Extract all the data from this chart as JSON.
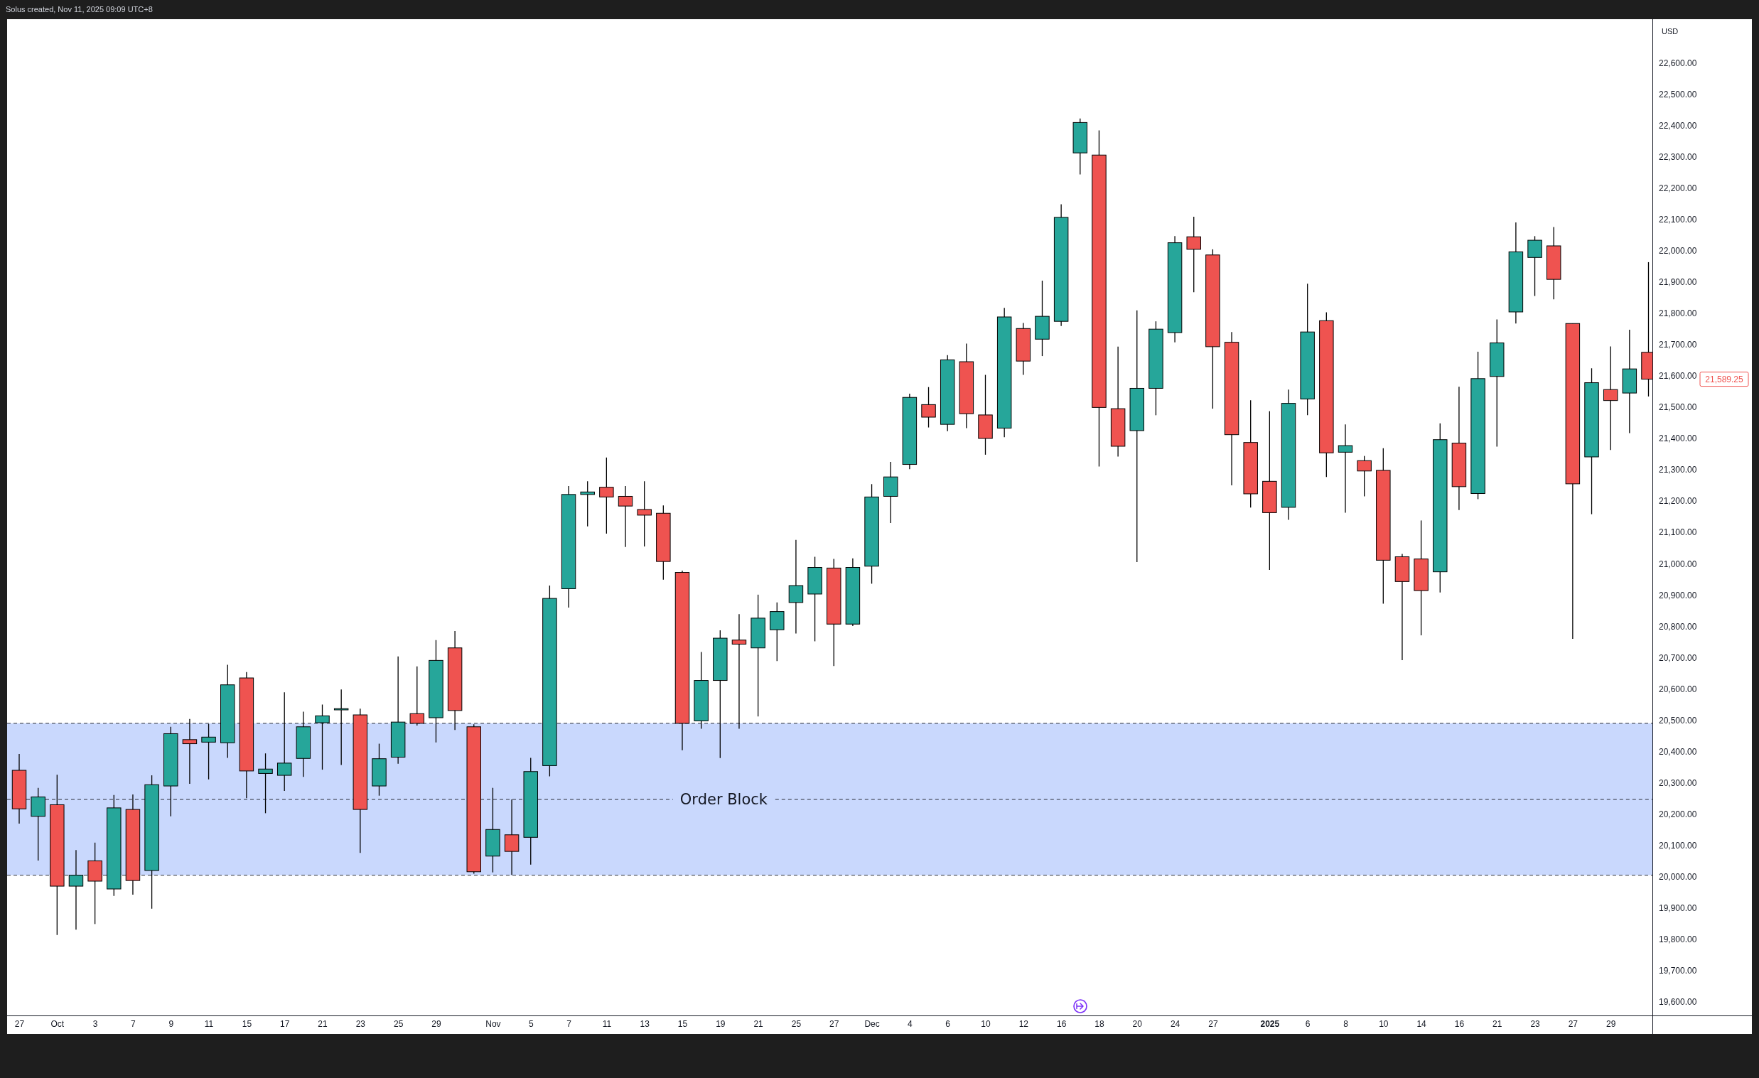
{
  "chart_data": {
    "type": "candlestick",
    "title": "Solus created, Nov 11, 2025 09:09 UTC+8",
    "ylabel": "USD",
    "categories": [
      "27",
      null,
      "Oct",
      null,
      "3",
      null,
      "7",
      null,
      "9",
      null,
      "11",
      null,
      "15",
      null,
      "17",
      null,
      "21",
      null,
      "23",
      null,
      "25",
      null,
      "29",
      null,
      null,
      "Nov",
      null,
      "5",
      null,
      "7",
      null,
      "11",
      null,
      "13",
      null,
      "15",
      null,
      "19",
      null,
      "21",
      null,
      "25",
      null,
      "27",
      null,
      "Dec",
      null,
      "4",
      null,
      "6",
      null,
      "10",
      null,
      "12",
      null,
      "16",
      null,
      "18",
      null,
      "20",
      null,
      "24",
      null,
      "27",
      null,
      null,
      "2025",
      null,
      "6",
      null,
      "8",
      null,
      "10",
      null,
      "14",
      null,
      "16",
      null,
      "21",
      null,
      "23",
      null,
      "27",
      null,
      "29",
      null,
      null
    ],
    "ohlc": [
      [
        20340,
        20392,
        20170,
        20217
      ],
      [
        20193,
        20284,
        20052,
        20255
      ],
      [
        20230,
        20326,
        19814,
        19970
      ],
      [
        19970,
        20085,
        19831,
        20005
      ],
      [
        20051,
        20109,
        19849,
        19986
      ],
      [
        19961,
        20261,
        19939,
        20220
      ],
      [
        20215,
        20263,
        19943,
        19988
      ],
      [
        20020,
        20324,
        19898,
        20294
      ],
      [
        20290,
        20479,
        20193,
        20457
      ],
      [
        20438,
        20504,
        20297,
        20425
      ],
      [
        20430,
        20488,
        20311,
        20446
      ],
      [
        20428,
        20677,
        20380,
        20613
      ],
      [
        20635,
        20654,
        20251,
        20338
      ],
      [
        20330,
        20394,
        20203,
        20344
      ],
      [
        20324,
        20589,
        20274,
        20363
      ],
      [
        20378,
        20527,
        20319,
        20479
      ],
      [
        20492,
        20550,
        20342,
        20514
      ],
      [
        20533,
        20598,
        20357,
        20537
      ],
      [
        20517,
        20537,
        20076,
        20215
      ],
      [
        20290,
        20425,
        20259,
        20377
      ],
      [
        20382,
        20704,
        20361,
        20494
      ],
      [
        20521,
        20672,
        20483,
        20490
      ],
      [
        20508,
        20756,
        20429,
        20691
      ],
      [
        20731,
        20785,
        20469,
        20531
      ],
      [
        20479,
        20487,
        20010,
        20016
      ],
      [
        20066,
        20284,
        20014,
        20151
      ],
      [
        20134,
        20247,
        20006,
        20081
      ],
      [
        20126,
        20380,
        20039,
        20336
      ],
      [
        20355,
        20930,
        20321,
        20889
      ],
      [
        20920,
        21248,
        20860,
        21221
      ],
      [
        21221,
        21263,
        21119,
        21229
      ],
      [
        21244,
        21339,
        21096,
        21213
      ],
      [
        21215,
        21248,
        21053,
        21184
      ],
      [
        21173,
        21263,
        21055,
        21155
      ],
      [
        21161,
        21186,
        20949,
        21007
      ],
      [
        20972,
        20978,
        20404,
        20490
      ],
      [
        20498,
        20718,
        20473,
        20627
      ],
      [
        20627,
        20787,
        20379,
        20762
      ],
      [
        20756,
        20839,
        20473,
        20743
      ],
      [
        20731,
        20901,
        20512,
        20826
      ],
      [
        20789,
        20876,
        20689,
        20847
      ],
      [
        20876,
        21076,
        20777,
        20930
      ],
      [
        20903,
        21022,
        20752,
        20988
      ],
      [
        20986,
        21015,
        20673,
        20807
      ],
      [
        20807,
        21017,
        20801,
        20988
      ],
      [
        20992,
        21254,
        20936,
        21213
      ],
      [
        21215,
        21325,
        21130,
        21277
      ],
      [
        21317,
        21543,
        21302,
        21531
      ],
      [
        21508,
        21564,
        21435,
        21468
      ],
      [
        21445,
        21666,
        21423,
        21651
      ],
      [
        21645,
        21703,
        21433,
        21479
      ],
      [
        21475,
        21603,
        21348,
        21400
      ],
      [
        21433,
        21817,
        21404,
        21788
      ],
      [
        21751,
        21769,
        21603,
        21647
      ],
      [
        21717,
        21904,
        21663,
        21790
      ],
      [
        21774,
        22148,
        21759,
        22106
      ],
      [
        22312,
        22422,
        22243,
        22409
      ],
      [
        22305,
        22384,
        21310,
        21499
      ],
      [
        21495,
        21693,
        21342,
        21375
      ],
      [
        21425,
        21809,
        21005,
        21560
      ],
      [
        21560,
        21774,
        21474,
        21749
      ],
      [
        21738,
        22046,
        21707,
        22025
      ],
      [
        22044,
        22108,
        21867,
        22004
      ],
      [
        21986,
        22004,
        21495,
        21693
      ],
      [
        21707,
        21740,
        21250,
        21412
      ],
      [
        21387,
        21522,
        21179,
        21223
      ],
      [
        21263,
        21487,
        20980,
        21163
      ],
      [
        21180,
        21556,
        21140,
        21512
      ],
      [
        21526,
        21894,
        21474,
        21740
      ],
      [
        21776,
        21803,
        21277,
        21354
      ],
      [
        21356,
        21445,
        21163,
        21377
      ],
      [
        21329,
        21344,
        21215,
        21296
      ],
      [
        21298,
        21369,
        20872,
        21011
      ],
      [
        21022,
        21031,
        20692,
        20943
      ],
      [
        21015,
        21138,
        20771,
        20914
      ],
      [
        20974,
        21448,
        20908,
        21396
      ],
      [
        21385,
        21565,
        21171,
        21246
      ],
      [
        21224,
        21677,
        21206,
        21591
      ],
      [
        21598,
        21780,
        21374,
        21705
      ],
      [
        21804,
        22090,
        21767,
        21996
      ],
      [
        21978,
        22046,
        21855,
        22033
      ],
      [
        22015,
        22075,
        21844,
        21908
      ],
      [
        21767,
        21767,
        20760,
        21255
      ],
      [
        21341,
        21624,
        21158,
        21578
      ],
      [
        21556,
        21694,
        21363,
        21521
      ],
      [
        21545,
        21747,
        21417,
        21622
      ],
      [
        21675,
        21963,
        21534,
        21589.25
      ]
    ],
    "colors": [
      "#ef5350",
      "#26a69a",
      "#ef5350",
      "#26a69a",
      "#ef5350",
      "#26a69a",
      "#ef5350",
      "#26a69a",
      "#26a69a",
      "#ef5350",
      "#26a69a",
      "#26a69a",
      "#ef5350",
      "#26a69a",
      "#26a69a",
      "#26a69a",
      "#26a69a",
      "#26a69a",
      "#ef5350",
      "#26a69a",
      "#26a69a",
      "#ef5350",
      "#26a69a",
      "#ef5350",
      "#ef5350",
      "#26a69a",
      "#ef5350",
      "#26a69a",
      "#26a69a",
      "#26a69a",
      "#26a69a",
      "#ef5350",
      "#ef5350",
      "#ef5350",
      "#ef5350",
      "#ef5350",
      "#26a69a",
      "#26a69a",
      "#ef5350",
      "#26a69a",
      "#26a69a",
      "#26a69a",
      "#26a69a",
      "#ef5350",
      "#26a69a",
      "#26a69a",
      "#26a69a",
      "#26a69a",
      "#ef5350",
      "#26a69a",
      "#ef5350",
      "#ef5350",
      "#26a69a",
      "#ef5350",
      "#26a69a",
      "#26a69a",
      "#26a69a",
      "#ef5350",
      "#ef5350",
      "#26a69a",
      "#26a69a",
      "#26a69a",
      "#ef5350",
      "#ef5350",
      "#ef5350",
      "#ef5350",
      "#ef5350",
      "#26a69a",
      "#26a69a",
      "#ef5350",
      "#26a69a",
      "#ef5350",
      "#ef5350",
      "#ef5350",
      "#ef5350",
      "#26a69a",
      "#ef5350",
      "#26a69a",
      "#26a69a",
      "#26a69a",
      "#26a69a",
      "#ef5350",
      "#ef5350",
      "#26a69a",
      "#ef5350",
      "#26a69a",
      "#ef5350"
    ],
    "ylim": [
      19557,
      22739
    ],
    "yticks": [
      {
        "value": 19600,
        "label": "19,600.00"
      },
      {
        "value": 19700,
        "label": "19,700.00"
      },
      {
        "value": 19800,
        "label": "19,800.00"
      },
      {
        "value": 19900,
        "label": "19,900.00"
      },
      {
        "value": 20000,
        "label": "20,000.00"
      },
      {
        "value": 20100,
        "label": "20,100.00"
      },
      {
        "value": 20200,
        "label": "20,200.00"
      },
      {
        "value": 20300,
        "label": "20,300.00"
      },
      {
        "value": 20400,
        "label": "20,400.00"
      },
      {
        "value": 20500,
        "label": "20,500.00"
      },
      {
        "value": 20600,
        "label": "20,600.00"
      },
      {
        "value": 20700,
        "label": "20,700.00"
      },
      {
        "value": 20800,
        "label": "20,800.00"
      },
      {
        "value": 20900,
        "label": "20,900.00"
      },
      {
        "value": 21000,
        "label": "21,000.00"
      },
      {
        "value": 21100,
        "label": "21,100.00"
      },
      {
        "value": 21200,
        "label": "21,200.00"
      },
      {
        "value": 21300,
        "label": "21,300.00"
      },
      {
        "value": 21400,
        "label": "21,400.00"
      },
      {
        "value": 21500,
        "label": "21,500.00"
      },
      {
        "value": 21600,
        "label": "21,600.00"
      },
      {
        "value": 21700,
        "label": "21,700.00"
      },
      {
        "value": 21800,
        "label": "21,800.00"
      },
      {
        "value": 21900,
        "label": "21,900.00"
      },
      {
        "value": 22000,
        "label": "22,000.00"
      },
      {
        "value": 22100,
        "label": "22,100.00"
      },
      {
        "value": 22200,
        "label": "22,200.00"
      },
      {
        "value": 22300,
        "label": "22,300.00"
      },
      {
        "value": 22400,
        "label": "22,400.00"
      },
      {
        "value": 22500,
        "label": "22,500.00"
      },
      {
        "value": 22600,
        "label": "22,600.00"
      }
    ],
    "bands": [
      {
        "axis": "y",
        "from": 20005,
        "to": 20490,
        "color": "#c9d8fd"
      }
    ],
    "ref_lines": [
      {
        "axis": "y",
        "value": 20490,
        "line_style": "dashed"
      },
      {
        "axis": "y",
        "value": 20247,
        "label": "Order Block",
        "line_style": "dashed"
      },
      {
        "axis": "y",
        "value": 20005,
        "line_style": "dashed"
      }
    ],
    "annotations": [
      "21,589.25"
    ]
  }
}
